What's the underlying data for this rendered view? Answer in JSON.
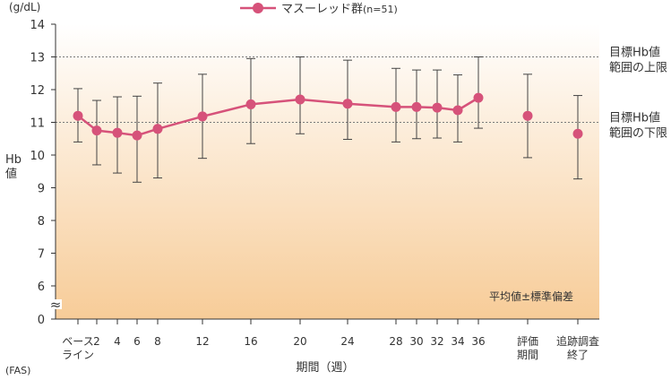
{
  "chart_data": {
    "type": "line",
    "title": "",
    "legend": {
      "label": "マスーレッド群",
      "note": "(n=51)",
      "placement": "top"
    },
    "y_unit": "(g/dL)",
    "ylabel_lines": [
      "Hb",
      "値"
    ],
    "xlabel": "期間（週）",
    "footnote": "(FAS)",
    "stat_note": "平均値±標準偏差",
    "y_axis": {
      "ticks": [
        14,
        13,
        12,
        11,
        10,
        9,
        8,
        7,
        6,
        0
      ],
      "upper_range": [
        6,
        14
      ],
      "break_symbol": "≈"
    },
    "reference_lines": [
      {
        "value": 13,
        "label_lines": [
          "目標Hb値",
          "範囲の上限"
        ]
      },
      {
        "value": 11,
        "label_lines": [
          "目標Hb値",
          "範囲の下限"
        ]
      }
    ],
    "categories": [
      [
        "ベース",
        "ライン"
      ],
      [
        "2"
      ],
      [
        "4"
      ],
      [
        "6"
      ],
      [
        "8"
      ],
      [
        "12"
      ],
      [
        "16"
      ],
      [
        "20"
      ],
      [
        "24"
      ],
      [
        "28"
      ],
      [
        "30"
      ],
      [
        "32"
      ],
      [
        "34"
      ],
      [
        "36"
      ],
      [
        "評価",
        "期間"
      ],
      [
        "追跡調査",
        "終了"
      ]
    ],
    "connected_count": 14,
    "series": [
      {
        "name": "マスーレッド群",
        "color": "#d6527a",
        "mean": [
          11.2,
          10.75,
          10.68,
          10.6,
          10.8,
          11.18,
          11.55,
          11.7,
          11.57,
          11.47,
          11.47,
          11.45,
          11.37,
          11.75,
          11.2,
          10.65
        ],
        "upper": [
          12.03,
          11.67,
          11.78,
          11.8,
          12.2,
          12.47,
          12.95,
          13.0,
          12.9,
          12.65,
          12.6,
          12.6,
          12.45,
          13.0,
          12.47,
          11.82
        ],
        "lower": [
          10.4,
          9.7,
          9.45,
          9.17,
          9.3,
          9.9,
          10.35,
          10.65,
          10.48,
          10.4,
          10.5,
          10.52,
          10.4,
          10.82,
          9.92,
          9.27
        ]
      }
    ]
  }
}
